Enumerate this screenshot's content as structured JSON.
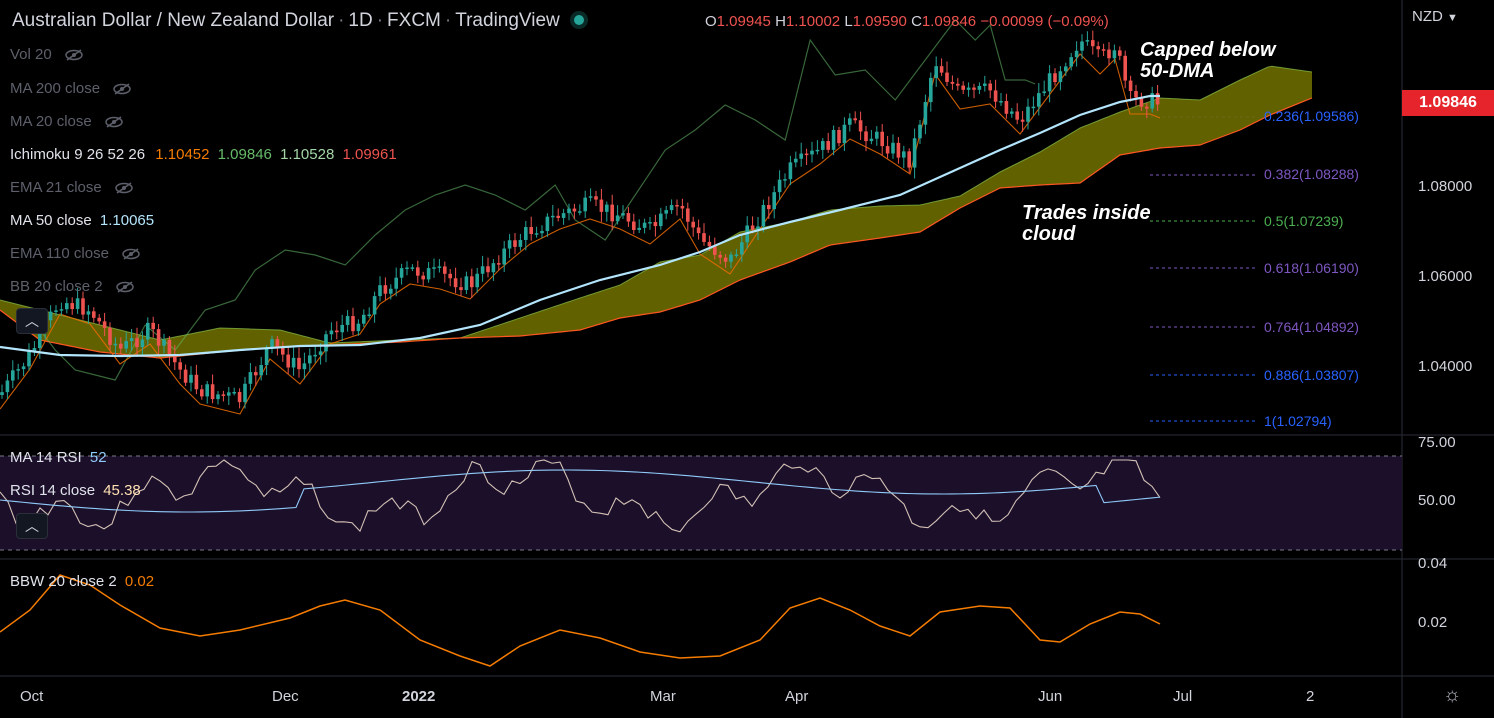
{
  "header": {
    "symbol": "Australian Dollar / New Zealand Dollar",
    "interval": "1D",
    "exchange": "FXCM",
    "source": "TradingView",
    "o_label": "O",
    "o": "1.09945",
    "h_label": "H",
    "h": "1.10002",
    "l_label": "L",
    "l": "1.09590",
    "c_label": "C",
    "c": "1.09846",
    "change": "−0.00099 (−0.09%)"
  },
  "currency": "NZD",
  "indicators": {
    "vol": "Vol 20",
    "ma200": "MA 200 close",
    "ma20": "MA 20 close",
    "ichimoku": "Ichimoku 9 26 52 26",
    "ichimoku_v1": "1.10452",
    "ichimoku_v2": "1.09846",
    "ichimoku_v3": "1.10528",
    "ichimoku_v4": "1.09961",
    "ema21": "EMA 21 close",
    "ma50": "MA 50 close",
    "ma50_value": "1.10065",
    "ema110": "EMA 110 close",
    "bb": "BB 20 close 2"
  },
  "last_price": "1.09846",
  "price_axis": [
    "1.08000",
    "1.06000",
    "1.04000"
  ],
  "fib_levels": [
    {
      "label": "0.236(1.09586)",
      "color": "#2962ff"
    },
    {
      "label": "0.382(1.08288)",
      "color": "#7e57c2"
    },
    {
      "label": "0.5(1.07239)",
      "color": "#4caf50"
    },
    {
      "label": "0.618(1.06190)",
      "color": "#7e57c2"
    },
    {
      "label": "0.764(1.04892)",
      "color": "#7e57c2"
    },
    {
      "label": "0.886(1.03807)",
      "color": "#2962ff"
    },
    {
      "label": "1(1.02794)",
      "color": "#2962ff"
    }
  ],
  "annotations": {
    "capped_line1": "Capped below",
    "capped_line2": "50-DMA",
    "cloud_line1": "Trades inside",
    "cloud_line2": "cloud"
  },
  "rsi": {
    "ma_label": "MA 14 RSI",
    "ma_value": "52",
    "rsi_label": "RSI 14 close",
    "rsi_value": "45.38",
    "axis": [
      "75.00",
      "50.00"
    ]
  },
  "bbw": {
    "label": "BBW 20 close 2",
    "value": "0.02",
    "axis": [
      "0.04",
      "0.02"
    ]
  },
  "time_axis": [
    "Oct",
    "Dec",
    "2022",
    "Mar",
    "Apr",
    "Jun",
    "Jul",
    "2"
  ],
  "colors": {
    "up": "#26a69a",
    "down": "#ef5350",
    "ma50": "#b3e5fc",
    "cloud_bull": "#6b6b00",
    "cloud_bear": "#6d3030",
    "rsi_bg": "#1b0f2a",
    "bbw": "#f57c00"
  }
}
